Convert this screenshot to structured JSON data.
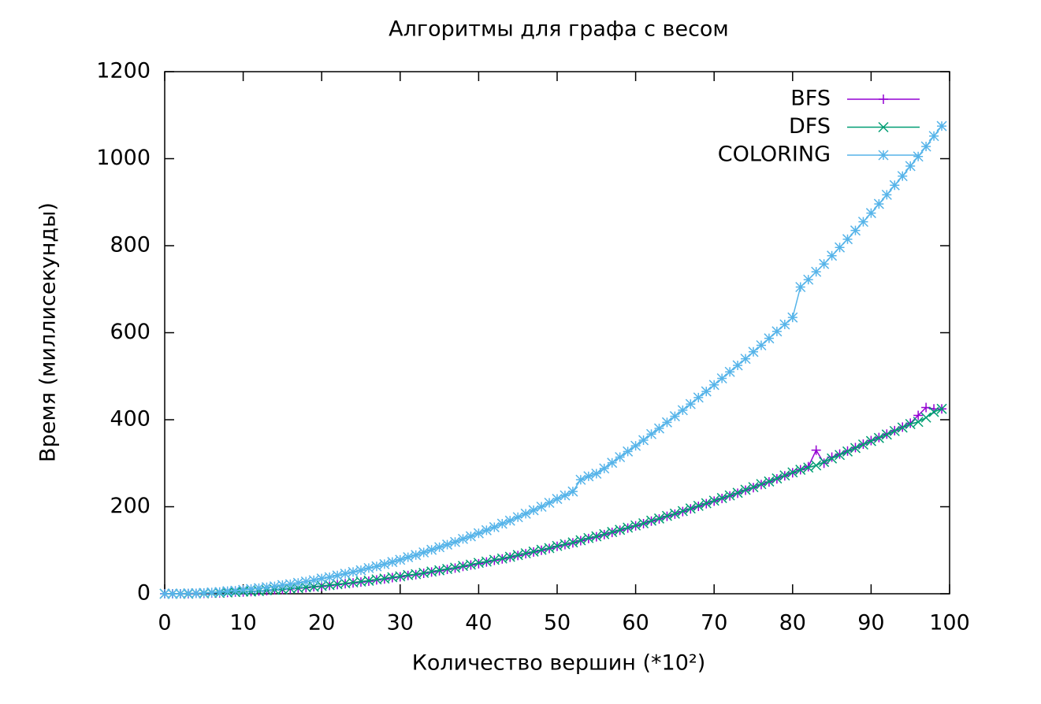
{
  "chart_data": {
    "type": "line",
    "title": "Алгоритмы для графа с весом",
    "x_label": "Количество вершин (*10²)",
    "y_label": "Время (миллисекунды)",
    "xlim": [
      0,
      100
    ],
    "ylim": [
      0,
      1200
    ],
    "xticks": [
      0,
      10,
      20,
      30,
      40,
      50,
      60,
      70,
      80,
      90,
      100
    ],
    "yticks": [
      0,
      200,
      400,
      600,
      800,
      1000,
      1200
    ],
    "legend": "top-right",
    "x": [
      0,
      1,
      2,
      3,
      4,
      5,
      6,
      7,
      8,
      9,
      10,
      11,
      12,
      13,
      14,
      15,
      16,
      17,
      18,
      19,
      20,
      21,
      22,
      23,
      24,
      25,
      26,
      27,
      28,
      29,
      30,
      31,
      32,
      33,
      34,
      35,
      36,
      37,
      38,
      39,
      40,
      41,
      42,
      43,
      44,
      45,
      46,
      47,
      48,
      49,
      50,
      51,
      52,
      53,
      54,
      55,
      56,
      57,
      58,
      59,
      60,
      61,
      62,
      63,
      64,
      65,
      66,
      67,
      68,
      69,
      70,
      71,
      72,
      73,
      74,
      75,
      76,
      77,
      78,
      79,
      80,
      81,
      82,
      83,
      84,
      85,
      86,
      87,
      88,
      89,
      90,
      91,
      92,
      93,
      94,
      95,
      96,
      97,
      98,
      99
    ],
    "series": [
      {
        "name": "BFS",
        "color": "#9400d3",
        "marker": "plus",
        "values": [
          0,
          0,
          0,
          0,
          1,
          1,
          2,
          2,
          3,
          4,
          4,
          5,
          6,
          7,
          9,
          10,
          11,
          13,
          14,
          16,
          17,
          19,
          21,
          23,
          25,
          27,
          29,
          32,
          34,
          37,
          39,
          42,
          44,
          47,
          50,
          53,
          56,
          59,
          63,
          66,
          69,
          73,
          77,
          80,
          84,
          88,
          92,
          96,
          100,
          104,
          109,
          113,
          117,
          122,
          127,
          131,
          136,
          141,
          146,
          151,
          156,
          161,
          167,
          172,
          178,
          183,
          189,
          195,
          201,
          207,
          213,
          219,
          225,
          231,
          238,
          244,
          251,
          257,
          264,
          271,
          278,
          285,
          292,
          330,
          300,
          314,
          321,
          328,
          336,
          344,
          352,
          359,
          367,
          375,
          383,
          392,
          410,
          428,
          425,
          425
        ]
      },
      {
        "name": "DFS",
        "color": "#009e73",
        "marker": "cross",
        "values": [
          0,
          0,
          0,
          0,
          1,
          1,
          2,
          2,
          3,
          4,
          5,
          5,
          6,
          8,
          9,
          10,
          12,
          13,
          15,
          16,
          18,
          20,
          22,
          24,
          26,
          28,
          30,
          33,
          35,
          38,
          40,
          43,
          45,
          48,
          51,
          54,
          57,
          60,
          64,
          67,
          71,
          74,
          78,
          81,
          85,
          89,
          93,
          97,
          101,
          105,
          110,
          114,
          118,
          123,
          128,
          132,
          137,
          142,
          147,
          152,
          157,
          162,
          168,
          173,
          179,
          184,
          190,
          196,
          202,
          208,
          214,
          220,
          226,
          232,
          239,
          245,
          252,
          258,
          265,
          272,
          279,
          285,
          290,
          295,
          303,
          311,
          319,
          327,
          335,
          343,
          351,
          358,
          366,
          374,
          382,
          390,
          395,
          405,
          418,
          425
        ]
      },
      {
        "name": "COLORING",
        "color": "#56b4e9",
        "marker": "star",
        "values": [
          0,
          0,
          0,
          1,
          1,
          2,
          3,
          4,
          6,
          7,
          9,
          11,
          13,
          15,
          17,
          20,
          22,
          25,
          28,
          31,
          35,
          38,
          42,
          46,
          50,
          54,
          59,
          63,
          68,
          73,
          78,
          84,
          89,
          95,
          101,
          107,
          113,
          119,
          126,
          132,
          139,
          146,
          153,
          161,
          168,
          176,
          184,
          192,
          200,
          209,
          218,
          226,
          235,
          262,
          270,
          276,
          288,
          301,
          314,
          327,
          340,
          353,
          367,
          380,
          394,
          408,
          422,
          436,
          451,
          465,
          480,
          495,
          510,
          525,
          540,
          556,
          571,
          587,
          603,
          619,
          635,
          705,
          722,
          740,
          758,
          777,
          796,
          815,
          835,
          855,
          875,
          896,
          917,
          939,
          960,
          983,
          1005,
          1028,
          1052,
          1075
        ]
      }
    ]
  }
}
